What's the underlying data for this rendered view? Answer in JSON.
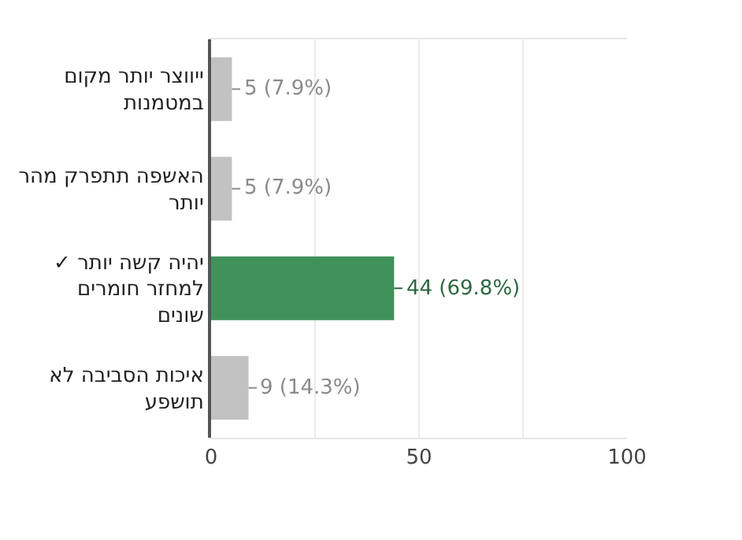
{
  "chart_data": {
    "type": "bar",
    "orientation": "horizontal",
    "categories": [
      "ייווצר יותר מקום במטמנות",
      "האשפה תתפרק מהר יותר",
      "✓ יהיה קשה יותר למחזר חומרים שונים",
      "איכות הסביבה לא תושפע"
    ],
    "values": [
      5,
      5,
      44,
      9
    ],
    "colors": [
      "#c2c2c2",
      "#c2c2c2",
      "#3f9159",
      "#c2c2c2"
    ],
    "value_labels": [
      "5 (7.9%)",
      "5 (7.9%)",
      "44 (69.8%)",
      "9 (14.3%)"
    ],
    "xlim": [
      0,
      100
    ],
    "xticks": [
      0,
      {
        "value": 25,
        "label": null
      },
      50,
      {
        "value": 75,
        "label": null
      },
      100
    ],
    "grid": "x",
    "legend": false
  }
}
